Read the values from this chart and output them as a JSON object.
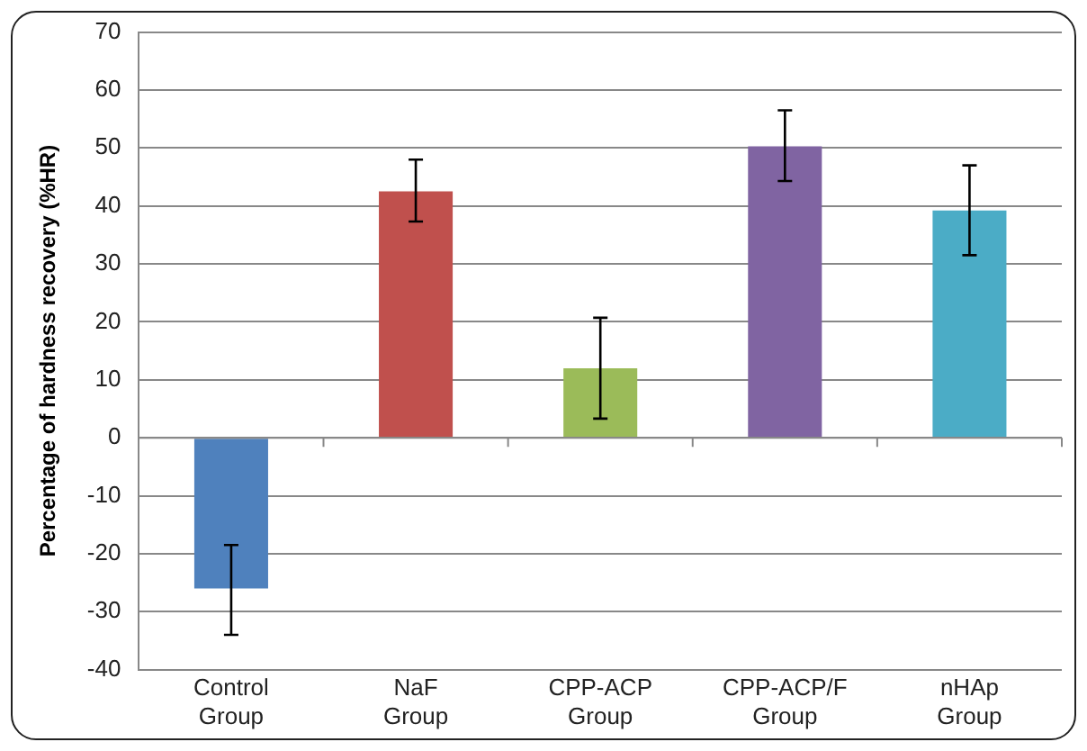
{
  "chart_data": {
    "type": "bar",
    "ylabel": "Percentage of hardness recovery (%HR)",
    "categories": [
      "Control Group",
      "NaF Group",
      "CPP-ACP Group",
      "CPP-ACP/F Group",
      "nHAp Group"
    ],
    "values": [
      -26,
      42.5,
      12,
      50.3,
      39.2
    ],
    "colors": [
      "#4f81bd",
      "#c0504d",
      "#9bbb59",
      "#8064a2",
      "#4bacc6"
    ],
    "errors": [
      [
        -34,
        -18.5
      ],
      [
        37.3,
        48
      ],
      [
        3.3,
        20.7
      ],
      [
        44.3,
        56.5
      ],
      [
        31.5,
        47
      ]
    ],
    "ylim": [
      -40,
      70
    ],
    "yticks": [
      -40,
      -30,
      -20,
      -10,
      0,
      10,
      20,
      30,
      40,
      50,
      60,
      70
    ],
    "grid": "y",
    "legend": false
  }
}
